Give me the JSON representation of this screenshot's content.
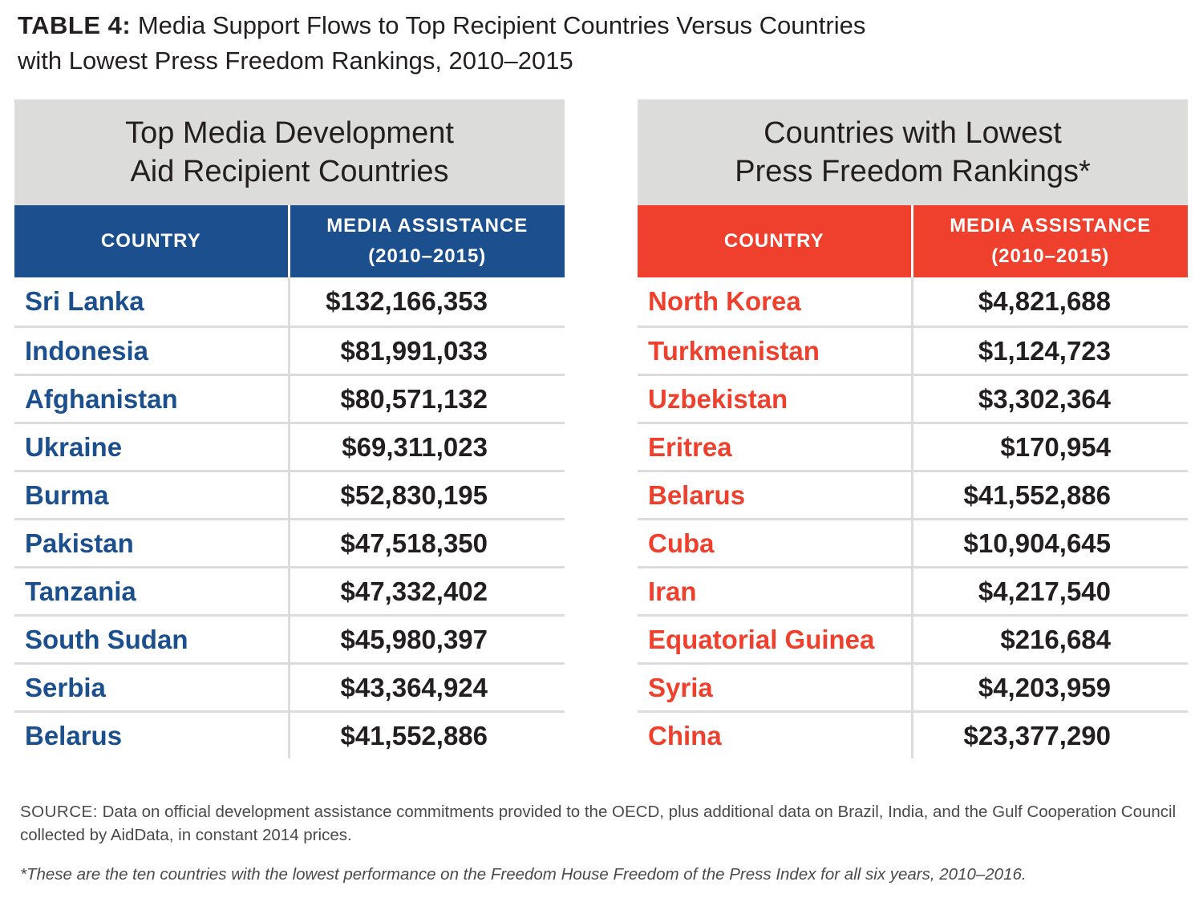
{
  "title": {
    "label": "TABLE 4:",
    "text": "Media Support Flows to Top Recipient Countries Versus Countries with Lowest Press Freedom Rankings, 2010–2015"
  },
  "colors": {
    "blue": "#1c4f8e",
    "red": "#ef402e",
    "header_gray": "#dcdcda"
  },
  "chart_data": [
    {
      "type": "table",
      "title": "Top Media Development Aid Recipient Countries",
      "columns": [
        "COUNTRY",
        "MEDIA ASSISTANCE (2010–2015)"
      ],
      "rows": [
        [
          "Sri Lanka",
          "$132,166,353"
        ],
        [
          "Indonesia",
          "$81,991,033"
        ],
        [
          "Afghanistan",
          "$80,571,132"
        ],
        [
          "Ukraine",
          "$69,311,023"
        ],
        [
          "Burma",
          "$52,830,195"
        ],
        [
          "Pakistan",
          "$47,518,350"
        ],
        [
          "Tanzania",
          "$47,332,402"
        ],
        [
          "South Sudan",
          "$45,980,397"
        ],
        [
          "Serbia",
          "$43,364,924"
        ],
        [
          "Belarus",
          "$41,552,886"
        ]
      ]
    },
    {
      "type": "table",
      "title": "Countries with Lowest Press Freedom Rankings*",
      "columns": [
        "COUNTRY",
        "MEDIA ASSISTANCE (2010–2015)"
      ],
      "rows": [
        [
          "North Korea",
          "$4,821,688"
        ],
        [
          "Turkmenistan",
          "$1,124,723"
        ],
        [
          "Uzbekistan",
          "$3,302,364"
        ],
        [
          "Eritrea",
          "$170,954"
        ],
        [
          "Belarus",
          "$41,552,886"
        ],
        [
          "Cuba",
          "$10,904,645"
        ],
        [
          "Iran",
          "$4,217,540"
        ],
        [
          "Equatorial Guinea",
          "$216,684"
        ],
        [
          "Syria",
          "$4,203,959"
        ],
        [
          "China",
          "$23,377,290"
        ]
      ]
    }
  ],
  "tables": [
    {
      "heading_line1": "Top Media Development",
      "heading_line2": "Aid Recipient Countries",
      "col_country": "COUNTRY",
      "col_assist_line1": "MEDIA ASSISTANCE",
      "col_assist_line2": "(2010–2015)",
      "rows": [
        {
          "country": "Sri Lanka",
          "amount": "$132,166,353"
        },
        {
          "country": "Indonesia",
          "amount": "$81,991,033"
        },
        {
          "country": "Afghanistan",
          "amount": "$80,571,132"
        },
        {
          "country": "Ukraine",
          "amount": "$69,311,023"
        },
        {
          "country": "Burma",
          "amount": "$52,830,195"
        },
        {
          "country": "Pakistan",
          "amount": "$47,518,350"
        },
        {
          "country": "Tanzania",
          "amount": "$47,332,402"
        },
        {
          "country": "South Sudan",
          "amount": "$45,980,397"
        },
        {
          "country": "Serbia",
          "amount": "$43,364,924"
        },
        {
          "country": "Belarus",
          "amount": "$41,552,886"
        }
      ]
    },
    {
      "heading_line1": "Countries with Lowest",
      "heading_line2": "Press Freedom Rankings*",
      "col_country": "COUNTRY",
      "col_assist_line1": "MEDIA ASSISTANCE",
      "col_assist_line2": "(2010–2015)",
      "rows": [
        {
          "country": "North Korea",
          "amount": "$4,821,688"
        },
        {
          "country": "Turkmenistan",
          "amount": "$1,124,723"
        },
        {
          "country": "Uzbekistan",
          "amount": "$3,302,364"
        },
        {
          "country": "Eritrea",
          "amount": "$170,954"
        },
        {
          "country": "Belarus",
          "amount": "$41,552,886"
        },
        {
          "country": "Cuba",
          "amount": "$10,904,645"
        },
        {
          "country": "Iran",
          "amount": "$4,217,540"
        },
        {
          "country": "Equatorial Guinea",
          "amount": "$216,684"
        },
        {
          "country": "Syria",
          "amount": "$4,203,959"
        },
        {
          "country": "China",
          "amount": "$23,377,290"
        }
      ]
    }
  ],
  "source": {
    "label": "SOURCE:",
    "text": "Data on official development assistance commitments provided to the OECD, plus additional data on Brazil, India, and the Gulf Cooperation Council collected by AidData, in constant 2014 prices."
  },
  "footnote": "*These are the ten countries with the lowest performance on the Freedom House Freedom of the Press Index for all six years, 2010–2016."
}
